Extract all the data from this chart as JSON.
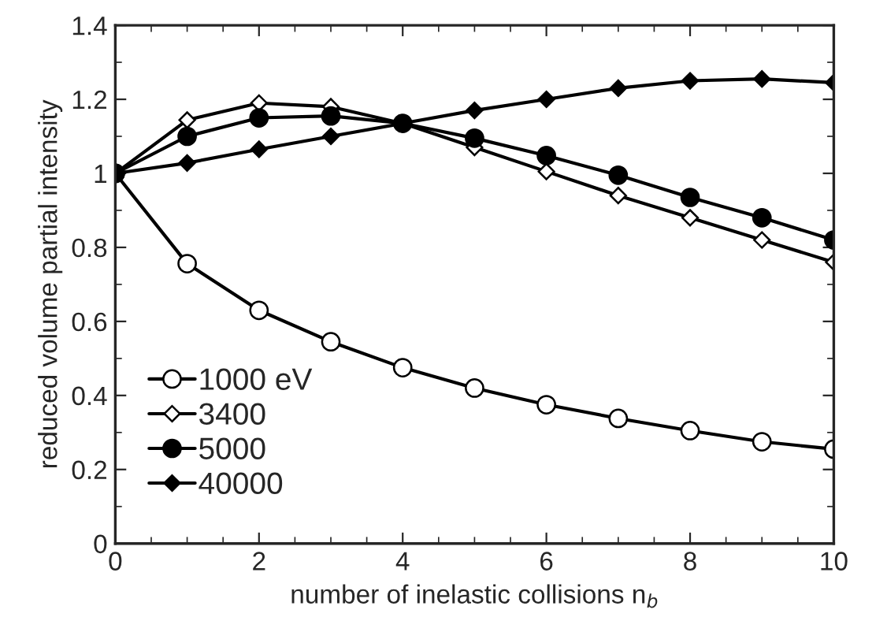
{
  "chart_data": {
    "type": "line",
    "xlabel": "number of inelastic collisions n$_{b}$",
    "ylabel": "reduced volume partial intensity",
    "x": [
      0,
      1,
      2,
      3,
      4,
      5,
      6,
      7,
      8,
      9,
      10
    ],
    "series": [
      {
        "name": "1000 eV",
        "color": "#ffffff",
        "marker": "circle",
        "values": [
          1,
          0.756,
          0.63,
          0.545,
          0.475,
          0.42,
          0.375,
          0.338,
          0.305,
          0.275,
          0.255
        ]
      },
      {
        "name": "3400",
        "color": "#ffffff",
        "marker": "diamond",
        "values": [
          1,
          1.144,
          1.19,
          1.18,
          1.135,
          1.07,
          1.005,
          0.94,
          0.88,
          0.82,
          0.76
        ]
      },
      {
        "name": "5000",
        "color": "#000000",
        "marker": "circle",
        "values": [
          1,
          1.1,
          1.15,
          1.155,
          1.135,
          1.095,
          1.048,
          0.995,
          0.935,
          0.88,
          0.82
        ]
      },
      {
        "name": "40000",
        "color": "#000000",
        "marker": "diamond",
        "values": [
          1,
          1.028,
          1.065,
          1.1,
          1.135,
          1.17,
          1.2,
          1.23,
          1.25,
          1.255,
          1.245
        ]
      }
    ],
    "xlim": [
      0,
      10
    ],
    "xticks": [
      0,
      2,
      4,
      6,
      8,
      10
    ],
    "ylim": [
      0,
      1.4
    ],
    "yticks": [
      0,
      0.2,
      0.4,
      0.6,
      0.8,
      1,
      1.2,
      1.4
    ],
    "grid": false,
    "legend": "bottom left",
    "line_style": "solid"
  }
}
